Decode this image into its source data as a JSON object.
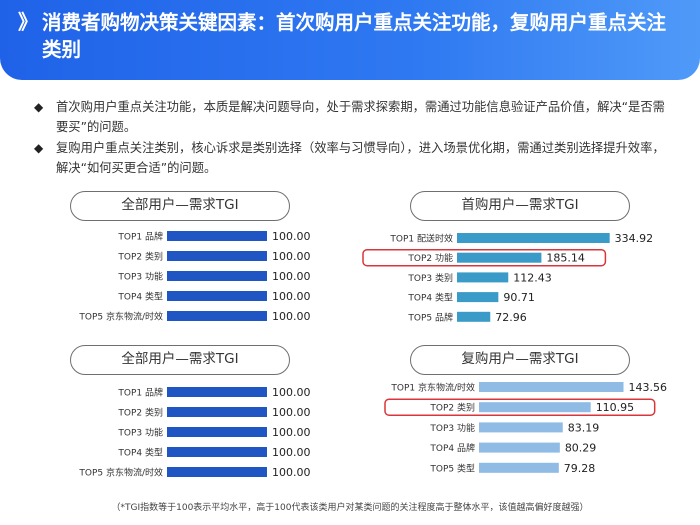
{
  "header": {
    "mark": "》",
    "title": "消费者购物决策关键因素：首次购用户重点关注功能，复购用户重点关注类别"
  },
  "bullets": [
    {
      "mark": "◆",
      "text": "首次购用户重点关注功能，本质是解决问题导向，处于需求探索期，需通过功能信息验证产品价值，解决“是否需要买”的问题。"
    },
    {
      "mark": "◆",
      "text": "复购用户重点关注类别，核心诉求是类别选择（效率与习惯导向），进入场景优化期，需通过类别选择提升效率，解决“如何买更合适”的问题。"
    }
  ],
  "colors": {
    "all_users": "#1f56c4",
    "first_purchase": "#3a9bc8",
    "repurchase": "#8fbbe4",
    "highlight": "#d9353a"
  },
  "footnote": "（*TGI指数等于100表示平均水平，高于100代表该类用户对某类问题的关注程度高于整体水平，该值越高偏好度越强）",
  "chart_data": [
    {
      "type": "bar",
      "orientation": "horizontal",
      "title": "全部用户—需求TGI",
      "categories": [
        "TOP1 品牌",
        "TOP2 类别",
        "TOP3 功能",
        "TOP4 类型",
        "TOP5 京东物流/时效"
      ],
      "values": [
        100.0,
        100.0,
        100.0,
        100.0,
        100.0
      ],
      "labels": [
        "100.00",
        "100.00",
        "100.00",
        "100.00",
        "100.00"
      ],
      "color": "#1f56c4",
      "highlight_index": null,
      "xlim": [
        0,
        340
      ]
    },
    {
      "type": "bar",
      "orientation": "horizontal",
      "title": "首购用户—需求TGI",
      "categories": [
        "TOP1 配送时效",
        "TOP2 功能",
        "TOP3 类别",
        "TOP4 类型",
        "TOP5 品牌"
      ],
      "values": [
        334.92,
        185.14,
        112.43,
        90.71,
        72.96
      ],
      "labels": [
        "334.92",
        "185.14",
        "112.43",
        "90.71",
        "72.96"
      ],
      "color": "#3a9bc8",
      "highlight_index": 1,
      "xlim": [
        0,
        340
      ]
    },
    {
      "type": "bar",
      "orientation": "horizontal",
      "title": "全部用户—需求TGI",
      "categories": [
        "TOP1 品牌",
        "TOP2 类别",
        "TOP3 功能",
        "TOP4 类型",
        "TOP5 京东物流/时效"
      ],
      "values": [
        100.0,
        100.0,
        100.0,
        100.0,
        100.0
      ],
      "labels": [
        "100.00",
        "100.00",
        "100.00",
        "100.00",
        "100.00"
      ],
      "color": "#1f56c4",
      "highlight_index": null,
      "xlim": [
        0,
        340
      ]
    },
    {
      "type": "bar",
      "orientation": "horizontal",
      "title": "复购用户—需求TGI",
      "categories": [
        "TOP1 京东物流/时效",
        "TOP2 类别",
        "TOP3 功能",
        "TOP4 品牌",
        "TOP5 类型"
      ],
      "values": [
        143.56,
        110.95,
        83.19,
        80.29,
        79.28
      ],
      "labels": [
        "143.56",
        "110.95",
        "83.19",
        "80.29",
        "79.28"
      ],
      "color": "#8fbbe4",
      "highlight_index": 1,
      "xlim": [
        0,
        150
      ]
    }
  ]
}
